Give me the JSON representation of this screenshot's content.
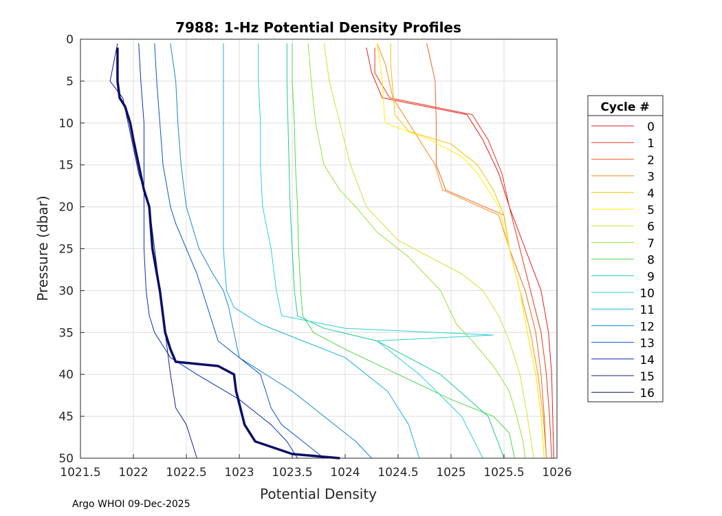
{
  "chart_data": {
    "type": "line",
    "title": "7988: 1-Hz Potential Density Profiles",
    "xlabel": "Potential Density",
    "ylabel": "Pressure (dbar)",
    "xlim": [
      1021.5,
      1026.0
    ],
    "ylim": [
      0,
      50
    ],
    "y_reversed": true,
    "grid": true,
    "xticks": [
      1021.5,
      1022,
      1022.5,
      1023,
      1023.5,
      1024,
      1024.5,
      1025,
      1025.5,
      1026
    ],
    "xtick_labels": [
      "1021.5",
      "1022",
      "1022.5",
      "1023",
      "1023.5",
      "1024",
      "1024.5",
      "1025",
      "1025.5",
      "1026"
    ],
    "yticks": [
      0,
      5,
      10,
      15,
      20,
      25,
      30,
      35,
      40,
      45,
      50
    ],
    "ytick_labels": [
      "0",
      "5",
      "10",
      "15",
      "20",
      "25",
      "30",
      "35",
      "40",
      "45",
      "50"
    ],
    "legend": {
      "title": "Cycle #",
      "placement": "right-outside"
    },
    "series": [
      {
        "name": "0",
        "color": "#e41a1c",
        "pressure": [
          1,
          4,
          7,
          9,
          12,
          16,
          20,
          25,
          30,
          35,
          40,
          45,
          50
        ],
        "density": [
          1024.2,
          1024.25,
          1024.35,
          1025.15,
          1025.3,
          1025.45,
          1025.55,
          1025.7,
          1025.85,
          1025.92,
          1025.95,
          1025.96,
          1025.97
        ]
      },
      {
        "name": "1",
        "color": "#e8351c",
        "pressure": [
          1,
          4,
          7,
          9,
          12,
          16,
          20,
          25,
          30,
          35,
          40,
          45,
          50
        ],
        "density": [
          1024.28,
          1024.28,
          1024.42,
          1025.2,
          1025.35,
          1025.48,
          1025.55,
          1025.65,
          1025.75,
          1025.85,
          1025.9,
          1025.93,
          1025.95
        ]
      },
      {
        "name": "2",
        "color": "#ec6320",
        "pressure": [
          0.5,
          5,
          10,
          15,
          18,
          21,
          25,
          30,
          35,
          40,
          45,
          50
        ],
        "density": [
          1024.77,
          1024.85,
          1024.86,
          1024.86,
          1024.95,
          1025.5,
          1025.55,
          1025.7,
          1025.8,
          1025.85,
          1025.88,
          1025.9
        ]
      },
      {
        "name": "3",
        "color": "#f18d22",
        "pressure": [
          0.5,
          3,
          7,
          10,
          15,
          18,
          21,
          25,
          30,
          35,
          40,
          45,
          50
        ],
        "density": [
          1024.3,
          1024.38,
          1024.45,
          1024.6,
          1024.85,
          1024.92,
          1025.45,
          1025.55,
          1025.65,
          1025.75,
          1025.82,
          1025.87,
          1025.9
        ]
      },
      {
        "name": "4",
        "color": "#f5c000",
        "pressure": [
          0.5,
          3,
          6,
          9,
          11,
          12.5,
          15,
          18,
          21,
          25,
          30,
          35,
          40,
          45,
          50
        ],
        "density": [
          1024.43,
          1024.43,
          1024.45,
          1024.47,
          1024.6,
          1025.0,
          1025.25,
          1025.4,
          1025.5,
          1025.55,
          1025.65,
          1025.72,
          1025.8,
          1025.85,
          1025.88
        ]
      },
      {
        "name": "5",
        "color": "#fff000",
        "pressure": [
          0.5,
          3,
          5,
          7,
          9,
          10,
          12,
          14,
          16,
          18,
          20,
          25,
          30,
          35,
          40,
          45,
          50
        ],
        "density": [
          1024.3,
          1024.33,
          1024.35,
          1024.36,
          1024.37,
          1024.38,
          1024.8,
          1025.1,
          1025.25,
          1025.35,
          1025.45,
          1025.55,
          1025.65,
          1025.72,
          1025.8,
          1025.85,
          1025.88
        ]
      },
      {
        "name": "6",
        "color": "#c8e62e",
        "pressure": [
          0.5,
          5,
          10,
          15,
          20,
          24,
          26,
          28,
          30,
          33,
          36,
          40,
          45,
          50
        ],
        "density": [
          1023.8,
          1023.85,
          1023.95,
          1024.05,
          1024.2,
          1024.5,
          1024.8,
          1025.1,
          1025.3,
          1025.45,
          1025.55,
          1025.65,
          1025.72,
          1025.78
        ]
      },
      {
        "name": "7",
        "color": "#96e332",
        "pressure": [
          0.5,
          5,
          10,
          15,
          18,
          20,
          23,
          26,
          30,
          34,
          36,
          39,
          42,
          45,
          48,
          50
        ],
        "density": [
          1023.65,
          1023.68,
          1023.72,
          1023.8,
          1023.95,
          1024.1,
          1024.3,
          1024.6,
          1024.9,
          1025.05,
          1025.2,
          1025.4,
          1025.55,
          1025.62,
          1025.68,
          1025.7
        ]
      },
      {
        "name": "8",
        "color": "#4cd84a",
        "pressure": [
          0.5,
          5,
          10,
          15,
          20,
          25,
          30,
          33,
          35,
          37,
          40,
          43,
          45,
          47,
          50
        ],
        "density": [
          1023.5,
          1023.5,
          1023.52,
          1023.53,
          1023.55,
          1023.56,
          1023.58,
          1023.6,
          1023.7,
          1024.0,
          1024.5,
          1025.0,
          1025.4,
          1025.55,
          1025.6
        ]
      },
      {
        "name": "9",
        "color": "#1ec98a",
        "pressure": [
          0.5,
          5,
          10,
          15,
          20,
          25,
          30,
          33,
          34.5,
          36,
          40,
          45,
          50
        ],
        "density": [
          1023.45,
          1023.45,
          1023.46,
          1023.47,
          1023.48,
          1023.5,
          1023.52,
          1023.55,
          1023.8,
          1024.3,
          1024.9,
          1025.35,
          1025.5
        ]
      },
      {
        "name": "10",
        "color": "#2ad0d8",
        "pressure": [
          0.5,
          5,
          10,
          15,
          20,
          25,
          30,
          33,
          34.5,
          35.3,
          36,
          40,
          45,
          50
        ],
        "density": [
          1023.18,
          1023.18,
          1023.2,
          1023.2,
          1023.22,
          1023.3,
          1023.35,
          1023.4,
          1024.0,
          1025.4,
          1024.3,
          1024.7,
          1025.1,
          1025.3
        ]
      },
      {
        "name": "11",
        "color": "#18b0e8",
        "pressure": [
          0.5,
          5,
          10,
          15,
          20,
          25,
          30,
          32,
          34,
          36,
          38,
          42,
          46,
          50
        ],
        "density": [
          1022.85,
          1022.85,
          1022.85,
          1022.85,
          1022.85,
          1022.85,
          1022.88,
          1022.95,
          1023.2,
          1023.6,
          1024.0,
          1024.4,
          1024.6,
          1024.7
        ]
      },
      {
        "name": "12",
        "color": "#0d86d8",
        "pressure": [
          0.5,
          5,
          10,
          15,
          20,
          25,
          28,
          30,
          32,
          35,
          38,
          42,
          45,
          48,
          50
        ],
        "density": [
          1022.35,
          1022.4,
          1022.42,
          1022.45,
          1022.5,
          1022.62,
          1022.75,
          1022.85,
          1022.9,
          1022.95,
          1023.0,
          1023.5,
          1023.8,
          1024.1,
          1024.25
        ]
      },
      {
        "name": "13",
        "color": "#0a52c8",
        "pressure": [
          0.5,
          5,
          10,
          15,
          20,
          22,
          25,
          28,
          32,
          36,
          40,
          44,
          46,
          48,
          50
        ],
        "density": [
          1022.2,
          1022.22,
          1022.25,
          1022.28,
          1022.35,
          1022.4,
          1022.5,
          1022.6,
          1022.7,
          1022.8,
          1023.2,
          1023.3,
          1023.4,
          1023.6,
          1023.8
        ]
      },
      {
        "name": "14",
        "color": "#0a2ab8",
        "pressure": [
          0.5,
          5,
          10,
          15,
          20,
          25,
          30,
          33,
          35,
          38,
          40,
          43,
          46,
          48,
          50
        ],
        "density": [
          1022.05,
          1022.07,
          1022.1,
          1022.1,
          1022.1,
          1022.1,
          1022.12,
          1022.15,
          1022.2,
          1022.35,
          1022.6,
          1023.0,
          1023.3,
          1023.45,
          1023.55
        ]
      },
      {
        "name": "15",
        "color": "#141a8a",
        "pressure": [
          0.5,
          5,
          7,
          10,
          13,
          16,
          20,
          25,
          30,
          35,
          40,
          44,
          46,
          48,
          50
        ],
        "density": [
          1021.85,
          1021.78,
          1021.9,
          1021.95,
          1022.0,
          1022.05,
          1022.15,
          1022.2,
          1022.25,
          1022.3,
          1022.35,
          1022.4,
          1022.5,
          1022.55,
          1022.6
        ]
      },
      {
        "name": "16",
        "color": "#0b0d66",
        "bold": true,
        "pressure": [
          1,
          5,
          7,
          8,
          10,
          12,
          15,
          18,
          20,
          25,
          30,
          35,
          37,
          38.5,
          39,
          40,
          42,
          46,
          48,
          49.5,
          50
        ],
        "density": [
          1021.85,
          1021.85,
          1021.87,
          1021.92,
          1021.97,
          1022.0,
          1022.05,
          1022.1,
          1022.15,
          1022.18,
          1022.25,
          1022.3,
          1022.35,
          1022.4,
          1022.8,
          1022.95,
          1022.97,
          1023.05,
          1023.15,
          1023.5,
          1023.95
        ]
      }
    ]
  },
  "footer": "Argo WHOI 09-Dec-2025"
}
